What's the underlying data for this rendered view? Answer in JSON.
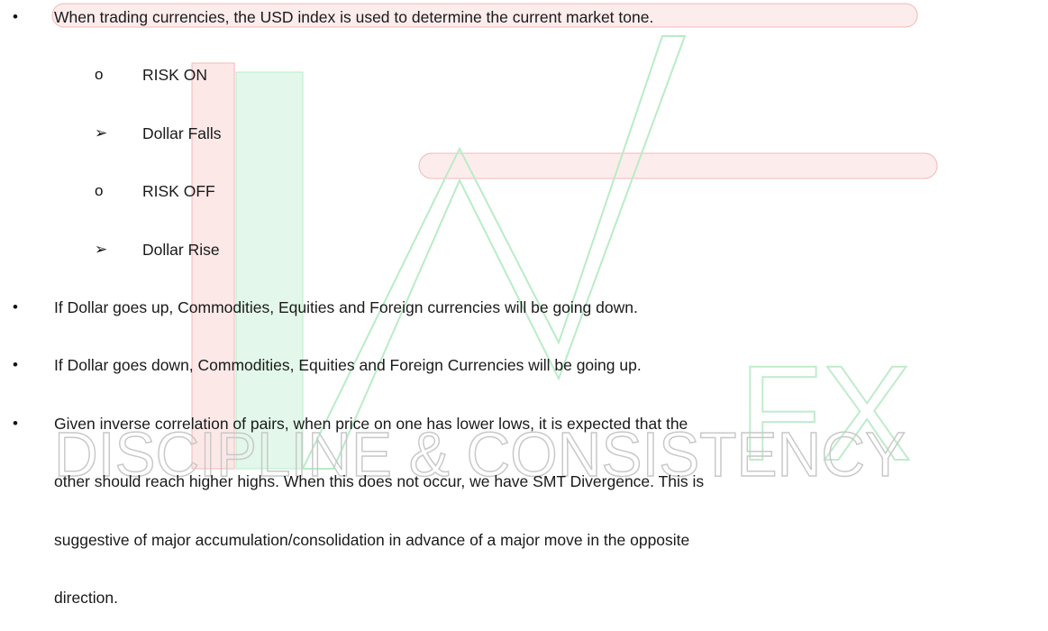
{
  "bullets": [
    {
      "text": "When trading currencies, the USD index is used to determine the current market tone.",
      "subitems": [
        {
          "marker": "o",
          "text": "RISK ON"
        },
        {
          "marker": "➢",
          "text": "Dollar Falls"
        },
        {
          "marker": "o",
          "text": "RISK OFF"
        },
        {
          "marker": "➢",
          "text": "Dollar Rise"
        }
      ]
    },
    {
      "text": "If Dollar goes up, Commodities, Equities and Foreign currencies will be going down."
    },
    {
      "text": "If Dollar goes down, Commodities, Equities and Foreign Currencies will be going up."
    },
    {
      "lines": [
        "Given inverse correlation of pairs, when price on one has lower lows, it is expected that the",
        "other should reach higher highs. When this does not occur, we have SMT Divergence. This is",
        "suggestive of major accumulation/consolidation in advance of a major move in the opposite",
        "direction."
      ]
    }
  ],
  "watermark": {
    "logo": "FX",
    "slogan": "DISCIPLINE & CONSISTENCY"
  }
}
